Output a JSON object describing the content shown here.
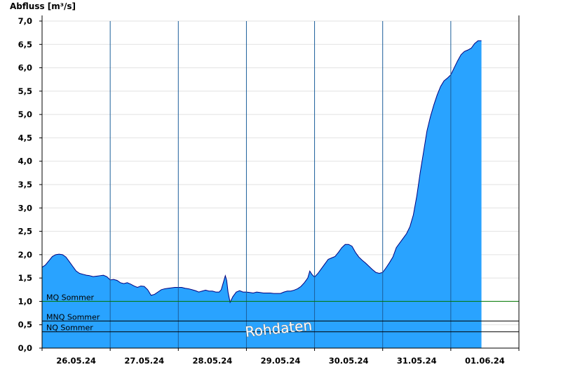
{
  "chart_data": {
    "type": "area",
    "ylabel": "Abfluss [m³/s]",
    "xlabel": "",
    "ylim": [
      0,
      7.0
    ],
    "y_ticks": [
      "0,0",
      "0,5",
      "1,0",
      "1,5",
      "2,0",
      "2,5",
      "3,0",
      "3,5",
      "4,0",
      "4,5",
      "5,0",
      "5,5",
      "6,0",
      "6,5",
      "7,0"
    ],
    "y_tick_values": [
      0,
      0.5,
      1,
      1.5,
      2,
      2.5,
      3,
      3.5,
      4,
      4.5,
      5,
      5.5,
      6,
      6.5,
      7
    ],
    "xlim_days": [
      0,
      7
    ],
    "x_tick_labels": [
      "26.05.24",
      "27.05.24",
      "28.05.24",
      "29.05.24",
      "30.05.24",
      "31.05.24",
      "01.06.24"
    ],
    "grid": true,
    "fill_color": "#29a3ff",
    "line_color": "#00007f",
    "series": [
      {
        "values": [
          [
            0.0,
            1.73
          ],
          [
            0.05,
            1.78
          ],
          [
            0.1,
            1.87
          ],
          [
            0.15,
            1.96
          ],
          [
            0.2,
            2.0
          ],
          [
            0.25,
            2.01
          ],
          [
            0.3,
            2.0
          ],
          [
            0.35,
            1.95
          ],
          [
            0.4,
            1.85
          ],
          [
            0.45,
            1.75
          ],
          [
            0.5,
            1.65
          ],
          [
            0.55,
            1.6
          ],
          [
            0.6,
            1.58
          ],
          [
            0.65,
            1.56
          ],
          [
            0.7,
            1.55
          ],
          [
            0.75,
            1.53
          ],
          [
            0.8,
            1.54
          ],
          [
            0.85,
            1.55
          ],
          [
            0.9,
            1.56
          ],
          [
            0.95,
            1.53
          ],
          [
            1.0,
            1.46
          ],
          [
            1.05,
            1.47
          ],
          [
            1.1,
            1.45
          ],
          [
            1.15,
            1.4
          ],
          [
            1.2,
            1.38
          ],
          [
            1.25,
            1.4
          ],
          [
            1.3,
            1.37
          ],
          [
            1.35,
            1.33
          ],
          [
            1.4,
            1.3
          ],
          [
            1.45,
            1.33
          ],
          [
            1.5,
            1.32
          ],
          [
            1.55,
            1.25
          ],
          [
            1.6,
            1.13
          ],
          [
            1.65,
            1.15
          ],
          [
            1.7,
            1.2
          ],
          [
            1.75,
            1.25
          ],
          [
            1.8,
            1.27
          ],
          [
            1.85,
            1.28
          ],
          [
            1.9,
            1.29
          ],
          [
            1.95,
            1.3
          ],
          [
            2.0,
            1.3
          ],
          [
            2.05,
            1.3
          ],
          [
            2.1,
            1.28
          ],
          [
            2.15,
            1.27
          ],
          [
            2.2,
            1.25
          ],
          [
            2.25,
            1.23
          ],
          [
            2.3,
            1.2
          ],
          [
            2.35,
            1.22
          ],
          [
            2.4,
            1.24
          ],
          [
            2.45,
            1.22
          ],
          [
            2.5,
            1.22
          ],
          [
            2.55,
            1.2
          ],
          [
            2.6,
            1.2
          ],
          [
            2.63,
            1.25
          ],
          [
            2.66,
            1.4
          ],
          [
            2.69,
            1.55
          ],
          [
            2.71,
            1.45
          ],
          [
            2.73,
            1.2
          ],
          [
            2.76,
            0.98
          ],
          [
            2.8,
            1.1
          ],
          [
            2.85,
            1.2
          ],
          [
            2.9,
            1.23
          ],
          [
            2.95,
            1.2
          ],
          [
            3.0,
            1.2
          ],
          [
            3.05,
            1.19
          ],
          [
            3.1,
            1.18
          ],
          [
            3.15,
            1.2
          ],
          [
            3.2,
            1.19
          ],
          [
            3.25,
            1.18
          ],
          [
            3.3,
            1.18
          ],
          [
            3.35,
            1.18
          ],
          [
            3.4,
            1.17
          ],
          [
            3.45,
            1.17
          ],
          [
            3.5,
            1.17
          ],
          [
            3.55,
            1.2
          ],
          [
            3.6,
            1.22
          ],
          [
            3.65,
            1.22
          ],
          [
            3.7,
            1.24
          ],
          [
            3.75,
            1.27
          ],
          [
            3.8,
            1.32
          ],
          [
            3.85,
            1.4
          ],
          [
            3.9,
            1.5
          ],
          [
            3.93,
            1.65
          ],
          [
            3.96,
            1.58
          ],
          [
            4.0,
            1.52
          ],
          [
            4.05,
            1.6
          ],
          [
            4.1,
            1.7
          ],
          [
            4.15,
            1.8
          ],
          [
            4.2,
            1.9
          ],
          [
            4.25,
            1.93
          ],
          [
            4.3,
            1.96
          ],
          [
            4.35,
            2.05
          ],
          [
            4.4,
            2.15
          ],
          [
            4.45,
            2.22
          ],
          [
            4.5,
            2.22
          ],
          [
            4.55,
            2.18
          ],
          [
            4.6,
            2.05
          ],
          [
            4.65,
            1.95
          ],
          [
            4.7,
            1.88
          ],
          [
            4.75,
            1.82
          ],
          [
            4.8,
            1.75
          ],
          [
            4.85,
            1.68
          ],
          [
            4.9,
            1.62
          ],
          [
            4.95,
            1.6
          ],
          [
            5.0,
            1.62
          ],
          [
            5.05,
            1.72
          ],
          [
            5.1,
            1.83
          ],
          [
            5.15,
            1.95
          ],
          [
            5.2,
            2.15
          ],
          [
            5.25,
            2.25
          ],
          [
            5.3,
            2.35
          ],
          [
            5.35,
            2.45
          ],
          [
            5.4,
            2.6
          ],
          [
            5.45,
            2.85
          ],
          [
            5.5,
            3.25
          ],
          [
            5.55,
            3.75
          ],
          [
            5.6,
            4.2
          ],
          [
            5.65,
            4.65
          ],
          [
            5.7,
            4.95
          ],
          [
            5.75,
            5.2
          ],
          [
            5.8,
            5.42
          ],
          [
            5.85,
            5.6
          ],
          [
            5.9,
            5.72
          ],
          [
            5.95,
            5.78
          ],
          [
            6.0,
            5.85
          ],
          [
            6.05,
            6.0
          ],
          [
            6.1,
            6.15
          ],
          [
            6.15,
            6.28
          ],
          [
            6.2,
            6.35
          ],
          [
            6.25,
            6.38
          ],
          [
            6.3,
            6.42
          ],
          [
            6.35,
            6.52
          ],
          [
            6.4,
            6.58
          ],
          [
            6.45,
            6.58
          ]
        ]
      }
    ],
    "reference_lines": [
      {
        "label": "MQ Sommer",
        "value": 1.0,
        "color": "#007700"
      },
      {
        "label": "MNQ Sommer",
        "value": 0.58,
        "color": "#000000"
      },
      {
        "label": "NQ Sommer",
        "value": 0.35,
        "color": "#000000"
      }
    ],
    "watermark": "Rohdaten"
  }
}
